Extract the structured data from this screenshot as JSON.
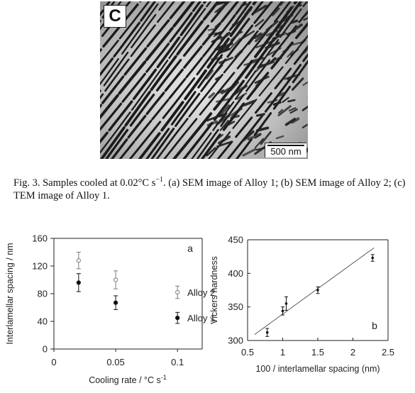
{
  "figure3": {
    "panel_letter": "C",
    "scale_bar_label": "500 nm",
    "caption_prefix": "Fig. 3. Samples cooled at 0.02°C s",
    "caption_superscript": "−1",
    "caption_rest": ". (a) SEM image of Alloy 1; (b) SEM image of Alloy 2; (c) TEM image of Alloy 1."
  },
  "chart_data": [
    {
      "type": "scatter",
      "panel_label": "a",
      "xlabel": "Cooling rate / °C s",
      "xlabel_superscript": "-1",
      "ylabel": "Interlamellar spacing / nm",
      "xlim": [
        0,
        0.12
      ],
      "ylim": [
        0,
        160
      ],
      "x_tick_values": [
        0,
        0.05,
        0.1
      ],
      "x_tick_labels": [
        "0",
        "0.05",
        "0.1"
      ],
      "y_tick_values": [
        0,
        40,
        80,
        120,
        160
      ],
      "y_tick_labels": [
        "0",
        "40",
        "80",
        "120",
        "160"
      ],
      "grid": false,
      "series": [
        {
          "name": "Alloy 2",
          "marker": "open-circle",
          "points": [
            {
              "x": 0.02,
              "y": 128,
              "err": 12
            },
            {
              "x": 0.05,
              "y": 100,
              "err": 13
            },
            {
              "x": 0.1,
              "y": 82,
              "err": 9
            }
          ]
        },
        {
          "name": "Alloy 1",
          "marker": "filled-circle",
          "points": [
            {
              "x": 0.02,
              "y": 96,
              "err": 13
            },
            {
              "x": 0.05,
              "y": 67,
              "err": 10
            },
            {
              "x": 0.1,
              "y": 45,
              "err": 8
            }
          ]
        }
      ]
    },
    {
      "type": "scatter",
      "panel_label": "b",
      "xlabel": "100 / interlamellar spacing (nm)",
      "ylabel": "Vickers hardness",
      "xlim": [
        0.5,
        2.5
      ],
      "ylim": [
        300,
        450
      ],
      "x_tick_values": [
        0.5,
        1,
        1.5,
        2,
        2.5
      ],
      "x_tick_labels": [
        "0.5",
        "1",
        "1.5",
        "2",
        "2.5"
      ],
      "y_tick_values": [
        300,
        350,
        400,
        450
      ],
      "y_tick_labels": [
        "300",
        "350",
        "400",
        "450"
      ],
      "grid": false,
      "points": [
        {
          "x": 0.78,
          "y": 312,
          "err": 6
        },
        {
          "x": 1.0,
          "y": 344,
          "err": 6
        },
        {
          "x": 1.05,
          "y": 355,
          "err": 10
        },
        {
          "x": 1.5,
          "y": 375,
          "err": 5
        },
        {
          "x": 2.28,
          "y": 423,
          "err": 5
        }
      ],
      "fit_line": {
        "x": [
          0.6,
          2.3
        ],
        "y": [
          309,
          438
        ]
      }
    }
  ]
}
